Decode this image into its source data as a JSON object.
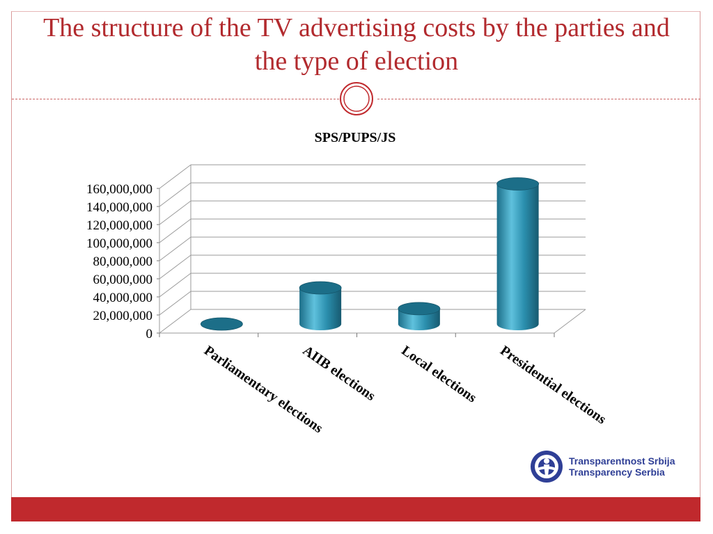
{
  "slide": {
    "title": "The structure of the TV advertising costs by the parties and the type of election"
  },
  "colors": {
    "title": "#b22a2e",
    "bar": "#2b8fae",
    "bar_light": "#5fc1dd",
    "bar_dark": "#1c6e88",
    "bottom_bar": "#c0292d",
    "logo": "#2f3f96"
  },
  "logo": {
    "line1": "Transparentnost Srbija",
    "line2": "Transparency Serbia",
    "icon": "transparency-serbia-logo-icon"
  },
  "chart_data": {
    "type": "bar",
    "style": "3d-cylinder",
    "title": "SPS/PUPS/JS",
    "categories": [
      "Parliamentary elections",
      "AIIB elections",
      "Local elections",
      "Presidential elections"
    ],
    "values": [
      0,
      40000000,
      17000000,
      155000000
    ],
    "yticks": [
      "0",
      "20,000,000",
      "40,000,000",
      "60,000,000",
      "80,000,000",
      "100,000,000",
      "120,000,000",
      "140,000,000",
      "160,000,000"
    ],
    "ylim": [
      0,
      160000000
    ],
    "grid": true,
    "legend": "none"
  }
}
